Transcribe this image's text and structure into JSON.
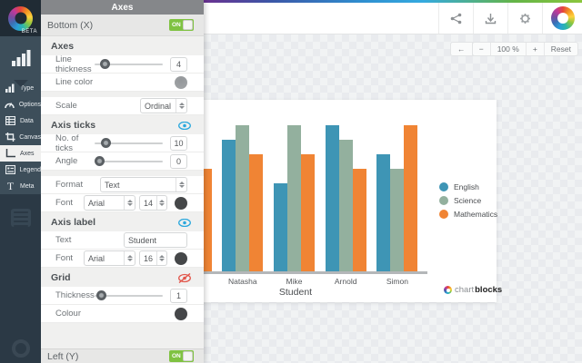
{
  "app": {
    "beta_badge": "BETA"
  },
  "rail": {
    "items": [
      {
        "label": "Type"
      },
      {
        "label": "Options"
      },
      {
        "label": "Data"
      },
      {
        "label": "Canvas"
      },
      {
        "label": "Axes",
        "selected": true
      },
      {
        "label": "Legend"
      },
      {
        "label": "Meta"
      }
    ]
  },
  "panel": {
    "header": "Axes",
    "bottom_x": {
      "label": "Bottom (X)",
      "toggle": "ON"
    },
    "axes_section": {
      "title": "Axes",
      "line_thickness_label": "Line thickness",
      "line_thickness_value": "4",
      "line_color_label": "Line color",
      "scale_label": "Scale",
      "scale_value": "Ordinal"
    },
    "axis_ticks_section": {
      "title": "Axis ticks",
      "no_of_ticks_label": "No. of ticks",
      "no_of_ticks_value": "10",
      "angle_label": "Angle",
      "angle_value": "0",
      "format_label": "Format",
      "format_value": "Text",
      "font_label": "Font",
      "font_family": "Arial",
      "font_size": "14"
    },
    "axis_label_section": {
      "title": "Axis label",
      "text_label": "Text",
      "text_value": "Student",
      "font_label": "Font",
      "font_family": "Arial",
      "font_size": "16"
    },
    "grid_section": {
      "title": "Grid",
      "thickness_label": "Thickness",
      "thickness_value": "1",
      "colour_label": "Colour"
    },
    "left_y": {
      "label": "Left (Y)",
      "toggle": "ON"
    }
  },
  "zoombar": {
    "back": "←",
    "forward": "→",
    "minus": "−",
    "level": "100 %",
    "plus": "+",
    "reset": "Reset"
  },
  "branding": {
    "chart": "chart",
    "blocks": "blocks"
  },
  "chart_data": {
    "type": "bar",
    "title": "",
    "xlabel": "Student",
    "ylabel": "",
    "ylim": [
      0,
      10
    ],
    "grid": false,
    "legend_position": "right",
    "clipped_first_group": true,
    "categories": [
      "",
      "Natasha",
      "Mike",
      "Arnold",
      "Simon"
    ],
    "series": [
      {
        "name": "English",
        "color": "#3e95b5",
        "values": [
          null,
          9,
          6,
          10,
          8
        ]
      },
      {
        "name": "Science",
        "color": "#93b09e",
        "values": [
          null,
          10,
          10,
          9,
          7
        ]
      },
      {
        "name": "Mathematics",
        "color": "#f08434",
        "values": [
          7,
          8,
          8,
          7,
          10
        ]
      }
    ]
  }
}
